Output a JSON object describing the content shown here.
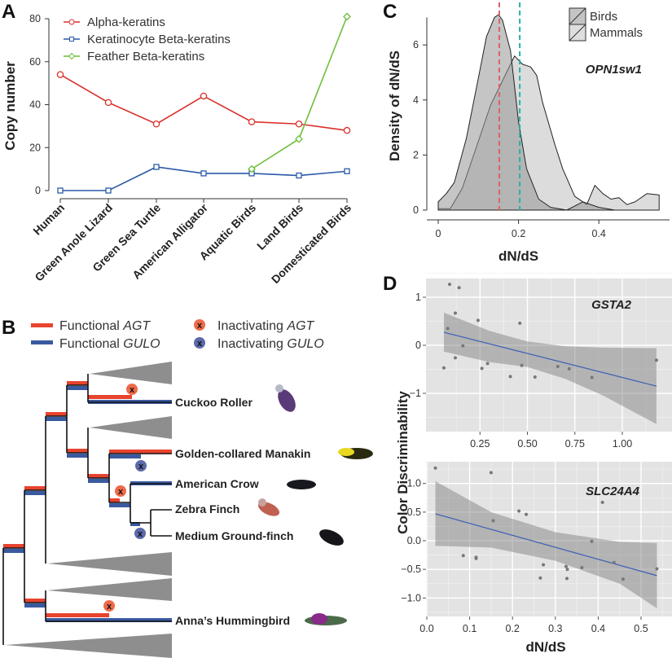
{
  "panels": {
    "a": "A",
    "b": "B",
    "c": "C",
    "d": "D"
  },
  "colors": {
    "alpha": "#d9302c",
    "kerat": "#2b5aa8",
    "feather": "#6cbf3a",
    "agt": "#e8432e",
    "gulo": "#3a5aa0",
    "red_dash": "#e06060",
    "teal_dash": "#2ab0a8",
    "fit": "#3b5fb5"
  },
  "chart_data": [
    {
      "id": "A",
      "type": "line",
      "title": "",
      "xlabel": "",
      "ylabel": "Copy number",
      "ylim": [
        0,
        80
      ],
      "yticks": [
        0,
        20,
        40,
        60,
        80
      ],
      "categories": [
        "Human",
        "Green Anole Lizard",
        "Green Sea Turtle",
        "American Alligator",
        "Aquatic Birds",
        "Land Birds",
        "Domesticated Birds"
      ],
      "legend_position": "top-left",
      "series": [
        {
          "name": "Alpha-keratins",
          "marker": "circle",
          "values": [
            54,
            41,
            31,
            44,
            32,
            31,
            28
          ]
        },
        {
          "name": "Keratinocyte Beta-keratins",
          "marker": "square",
          "values": [
            0,
            0,
            11,
            8,
            8,
            7,
            9
          ]
        },
        {
          "name": "Feather Beta-keratins",
          "marker": "diamond",
          "values": [
            null,
            null,
            null,
            null,
            10,
            24,
            81
          ]
        }
      ]
    },
    {
      "id": "C",
      "type": "area",
      "title": "OPN1sw1",
      "xlabel": "dN/dS",
      "ylabel": "Density of dN/dS",
      "xlim": [
        0,
        0.55
      ],
      "ylim": [
        0,
        7.2
      ],
      "xticks": [
        "0",
        "0.2",
        "0.4"
      ],
      "yticks": [
        "0",
        "2",
        "4",
        "6"
      ],
      "legend_position": "top-right",
      "vlines": [
        0.152,
        0.203
      ],
      "series": [
        {
          "name": "Mammals",
          "x": [
            0,
            0.03,
            0.06,
            0.1,
            0.13,
            0.16,
            0.19,
            0.21,
            0.23,
            0.245,
            0.26,
            0.29,
            0.31,
            0.34,
            0.37,
            0.39,
            0.41,
            0.43,
            0.45,
            0.47,
            0.49,
            0.52,
            0.55,
            0.55
          ],
          "y": [
            0.05,
            0.05,
            0.8,
            2.5,
            3.8,
            4.7,
            5.6,
            5.3,
            5.2,
            4.9,
            3.9,
            2.4,
            1.5,
            0.5,
            0.2,
            0.9,
            0.6,
            0.4,
            0.45,
            0.2,
            0.3,
            0.6,
            0.55,
            0
          ]
        },
        {
          "name": "Birds",
          "x": [
            0,
            0.02,
            0.04,
            0.07,
            0.1,
            0.12,
            0.14,
            0.15,
            0.16,
            0.18,
            0.19,
            0.2,
            0.22,
            0.25,
            0.28,
            0.32,
            0.36,
            0.4,
            0.44
          ],
          "y": [
            0.3,
            0.6,
            1.0,
            2.6,
            4.8,
            6.3,
            7.0,
            7.1,
            6.9,
            5.8,
            4.5,
            3.2,
            1.5,
            0.4,
            0.1,
            0.0,
            0.3,
            0.1,
            0
          ]
        }
      ]
    },
    {
      "id": "D1",
      "type": "scatter",
      "title": "GSTA2",
      "xlabel": "",
      "ylabel": "Color Discriminability",
      "xlim": [
        0,
        1.23
      ],
      "ylim": [
        -1.8,
        1.4
      ],
      "xticks": [
        "0.25",
        "0.50",
        "0.75",
        "1.00"
      ],
      "yticks": [
        "1",
        "0",
        "−1"
      ],
      "points": [
        [
          0.06,
          -0.47
        ],
        [
          0.09,
          1.27
        ],
        [
          0.14,
          1.2
        ],
        [
          0.12,
          0.67
        ],
        [
          0.08,
          0.35
        ],
        [
          0.12,
          -0.26
        ],
        [
          0.16,
          -0.01
        ],
        [
          0.24,
          0.52
        ],
        [
          0.26,
          -0.48
        ],
        [
          0.29,
          -0.38
        ],
        [
          0.41,
          -0.65
        ],
        [
          0.46,
          0.46
        ],
        [
          0.47,
          -0.42
        ],
        [
          0.54,
          -0.66
        ],
        [
          0.66,
          -0.44
        ],
        [
          0.72,
          -0.49
        ],
        [
          0.84,
          -0.67
        ],
        [
          1.18,
          -0.31
        ]
      ],
      "fit": [
        [
          0.06,
          0.27
        ],
        [
          1.18,
          -0.85
        ]
      ],
      "ribbon": {
        "x": [
          0.06,
          0.3,
          0.5,
          0.7,
          0.9,
          1.18
        ],
        "upper": [
          0.68,
          0.3,
          0.08,
          -0.02,
          -0.05,
          -0.06
        ],
        "lower": [
          -0.13,
          -0.35,
          -0.45,
          -0.7,
          -1.05,
          -1.64
        ]
      }
    },
    {
      "id": "D2",
      "type": "scatter",
      "title": "SLC24A4",
      "xlabel": "dN/dS",
      "ylabel": "Color Discriminability",
      "xlim": [
        -0.005,
        0.56
      ],
      "ylim": [
        -1.3,
        1.4
      ],
      "xticks": [
        "0.0",
        "0.1",
        "0.2",
        "0.3",
        "0.4",
        "0.5"
      ],
      "yticks": [
        "1.0",
        "0.5",
        "0.0",
        "−0.5",
        "−1.0"
      ],
      "points": [
        [
          0.02,
          1.27
        ],
        [
          0.15,
          1.19
        ],
        [
          0.085,
          -0.26
        ],
        [
          0.115,
          -0.29
        ],
        [
          0.115,
          -0.31
        ],
        [
          0.155,
          0.35
        ],
        [
          0.215,
          0.52
        ],
        [
          0.232,
          0.46
        ],
        [
          0.265,
          -0.65
        ],
        [
          0.272,
          -0.42
        ],
        [
          0.325,
          -0.45
        ],
        [
          0.328,
          -0.5
        ],
        [
          0.327,
          -0.66
        ],
        [
          0.362,
          -0.47
        ],
        [
          0.385,
          -0.01
        ],
        [
          0.41,
          0.67
        ],
        [
          0.437,
          -0.38
        ],
        [
          0.458,
          -0.67
        ],
        [
          0.537,
          -0.49
        ]
      ],
      "fit": [
        [
          0.02,
          0.47
        ],
        [
          0.537,
          -0.61
        ]
      ],
      "ribbon": {
        "x": [
          0.02,
          0.15,
          0.3,
          0.45,
          0.537
        ],
        "upper": [
          1.04,
          0.5,
          0.15,
          -0.02,
          -0.04
        ],
        "lower": [
          -0.09,
          -0.12,
          -0.35,
          -0.75,
          -1.18
        ]
      }
    }
  ],
  "tree": {
    "legend": {
      "functional": "Functional",
      "inactivating": "Inactivating",
      "agt": "AGT",
      "gulo": "GULO",
      "x": "x"
    },
    "taxa": [
      "Cuckoo Roller",
      "Golden-collared Manakin",
      "American Crow",
      "Zebra Finch",
      "Medium Ground-finch",
      "Anna’s Hummingbird"
    ]
  }
}
